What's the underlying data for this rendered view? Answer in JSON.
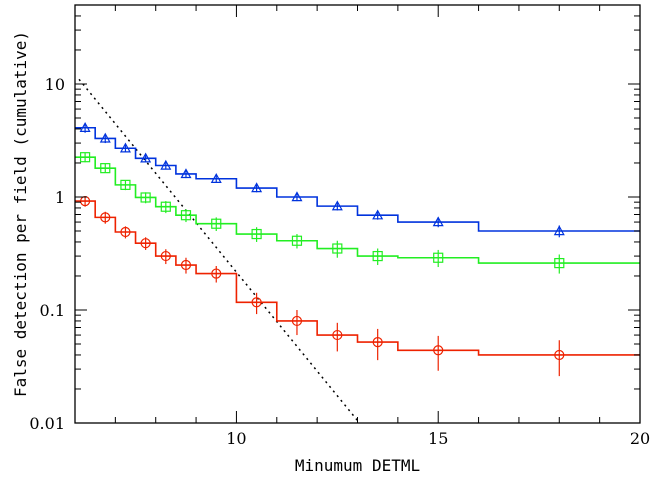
{
  "chart_data": {
    "type": "line",
    "title": "",
    "xlabel": "Minumum DETML",
    "ylabel": "False detection per field (cumulative)",
    "xlim": [
      6,
      20
    ],
    "ylim": [
      0.01,
      50
    ],
    "yscale": "log",
    "grid": false,
    "legend": "none",
    "x_ticks": [
      {
        "value": 10,
        "label": "10"
      },
      {
        "value": 15,
        "label": "15"
      },
      {
        "value": 20,
        "label": "20"
      }
    ],
    "y_ticks": [
      {
        "value": 0.01,
        "label": "0.01"
      },
      {
        "value": 0.1,
        "label": "0.1"
      },
      {
        "value": 1,
        "label": "1"
      },
      {
        "value": 10,
        "label": "10"
      }
    ],
    "bin_edges": [
      6,
      6.5,
      7,
      7.5,
      8,
      8.5,
      9,
      10,
      11,
      12,
      13,
      14,
      16,
      20
    ],
    "bin_centers": [
      6.25,
      6.75,
      7.25,
      7.75,
      8.25,
      8.75,
      9.5,
      10.5,
      11.5,
      12.5,
      13.5,
      15,
      18
    ],
    "series": [
      {
        "color": "#0033dd",
        "marker": "triangle",
        "values": [
          4.1,
          3.3,
          2.7,
          2.2,
          1.9,
          1.6,
          1.45,
          1.2,
          1.0,
          0.83,
          0.69,
          0.6,
          0.5
        ],
        "err_lo": [
          0.4,
          0.3,
          0.22,
          0.18,
          0.15,
          0.13,
          0.11,
          0.1,
          0.08,
          0.07,
          0.06,
          0.06,
          0.06
        ],
        "err_hi": [
          0.4,
          0.3,
          0.22,
          0.18,
          0.15,
          0.13,
          0.11,
          0.1,
          0.08,
          0.07,
          0.06,
          0.06,
          0.06
        ]
      },
      {
        "color": "#22ee22",
        "marker": "square",
        "values": [
          2.25,
          1.8,
          1.28,
          0.99,
          0.82,
          0.69,
          0.58,
          0.47,
          0.41,
          0.35,
          0.3,
          0.29,
          0.26
        ],
        "err_lo": [
          0.22,
          0.16,
          0.13,
          0.11,
          0.1,
          0.09,
          0.08,
          0.07,
          0.06,
          0.06,
          0.05,
          0.05,
          0.05
        ],
        "err_hi": [
          0.22,
          0.16,
          0.13,
          0.11,
          0.1,
          0.09,
          0.08,
          0.07,
          0.06,
          0.06,
          0.05,
          0.05,
          0.05
        ]
      },
      {
        "color": "#ee2200",
        "marker": "circle",
        "values": [
          0.92,
          0.66,
          0.49,
          0.39,
          0.3,
          0.25,
          0.21,
          0.117,
          0.08,
          0.06,
          0.052,
          0.044,
          0.04
        ],
        "err_lo": [
          0.1,
          0.08,
          0.06,
          0.05,
          0.045,
          0.04,
          0.035,
          0.025,
          0.02,
          0.017,
          0.016,
          0.015,
          0.014
        ],
        "err_hi": [
          0.1,
          0.08,
          0.06,
          0.05,
          0.045,
          0.04,
          0.035,
          0.025,
          0.02,
          0.017,
          0.016,
          0.015,
          0.014
        ]
      }
    ],
    "reference_line": {
      "style": "dotted",
      "color": "#000000",
      "x": [
        6.1,
        13.05
      ],
      "y": [
        11.0,
        0.01
      ]
    }
  }
}
